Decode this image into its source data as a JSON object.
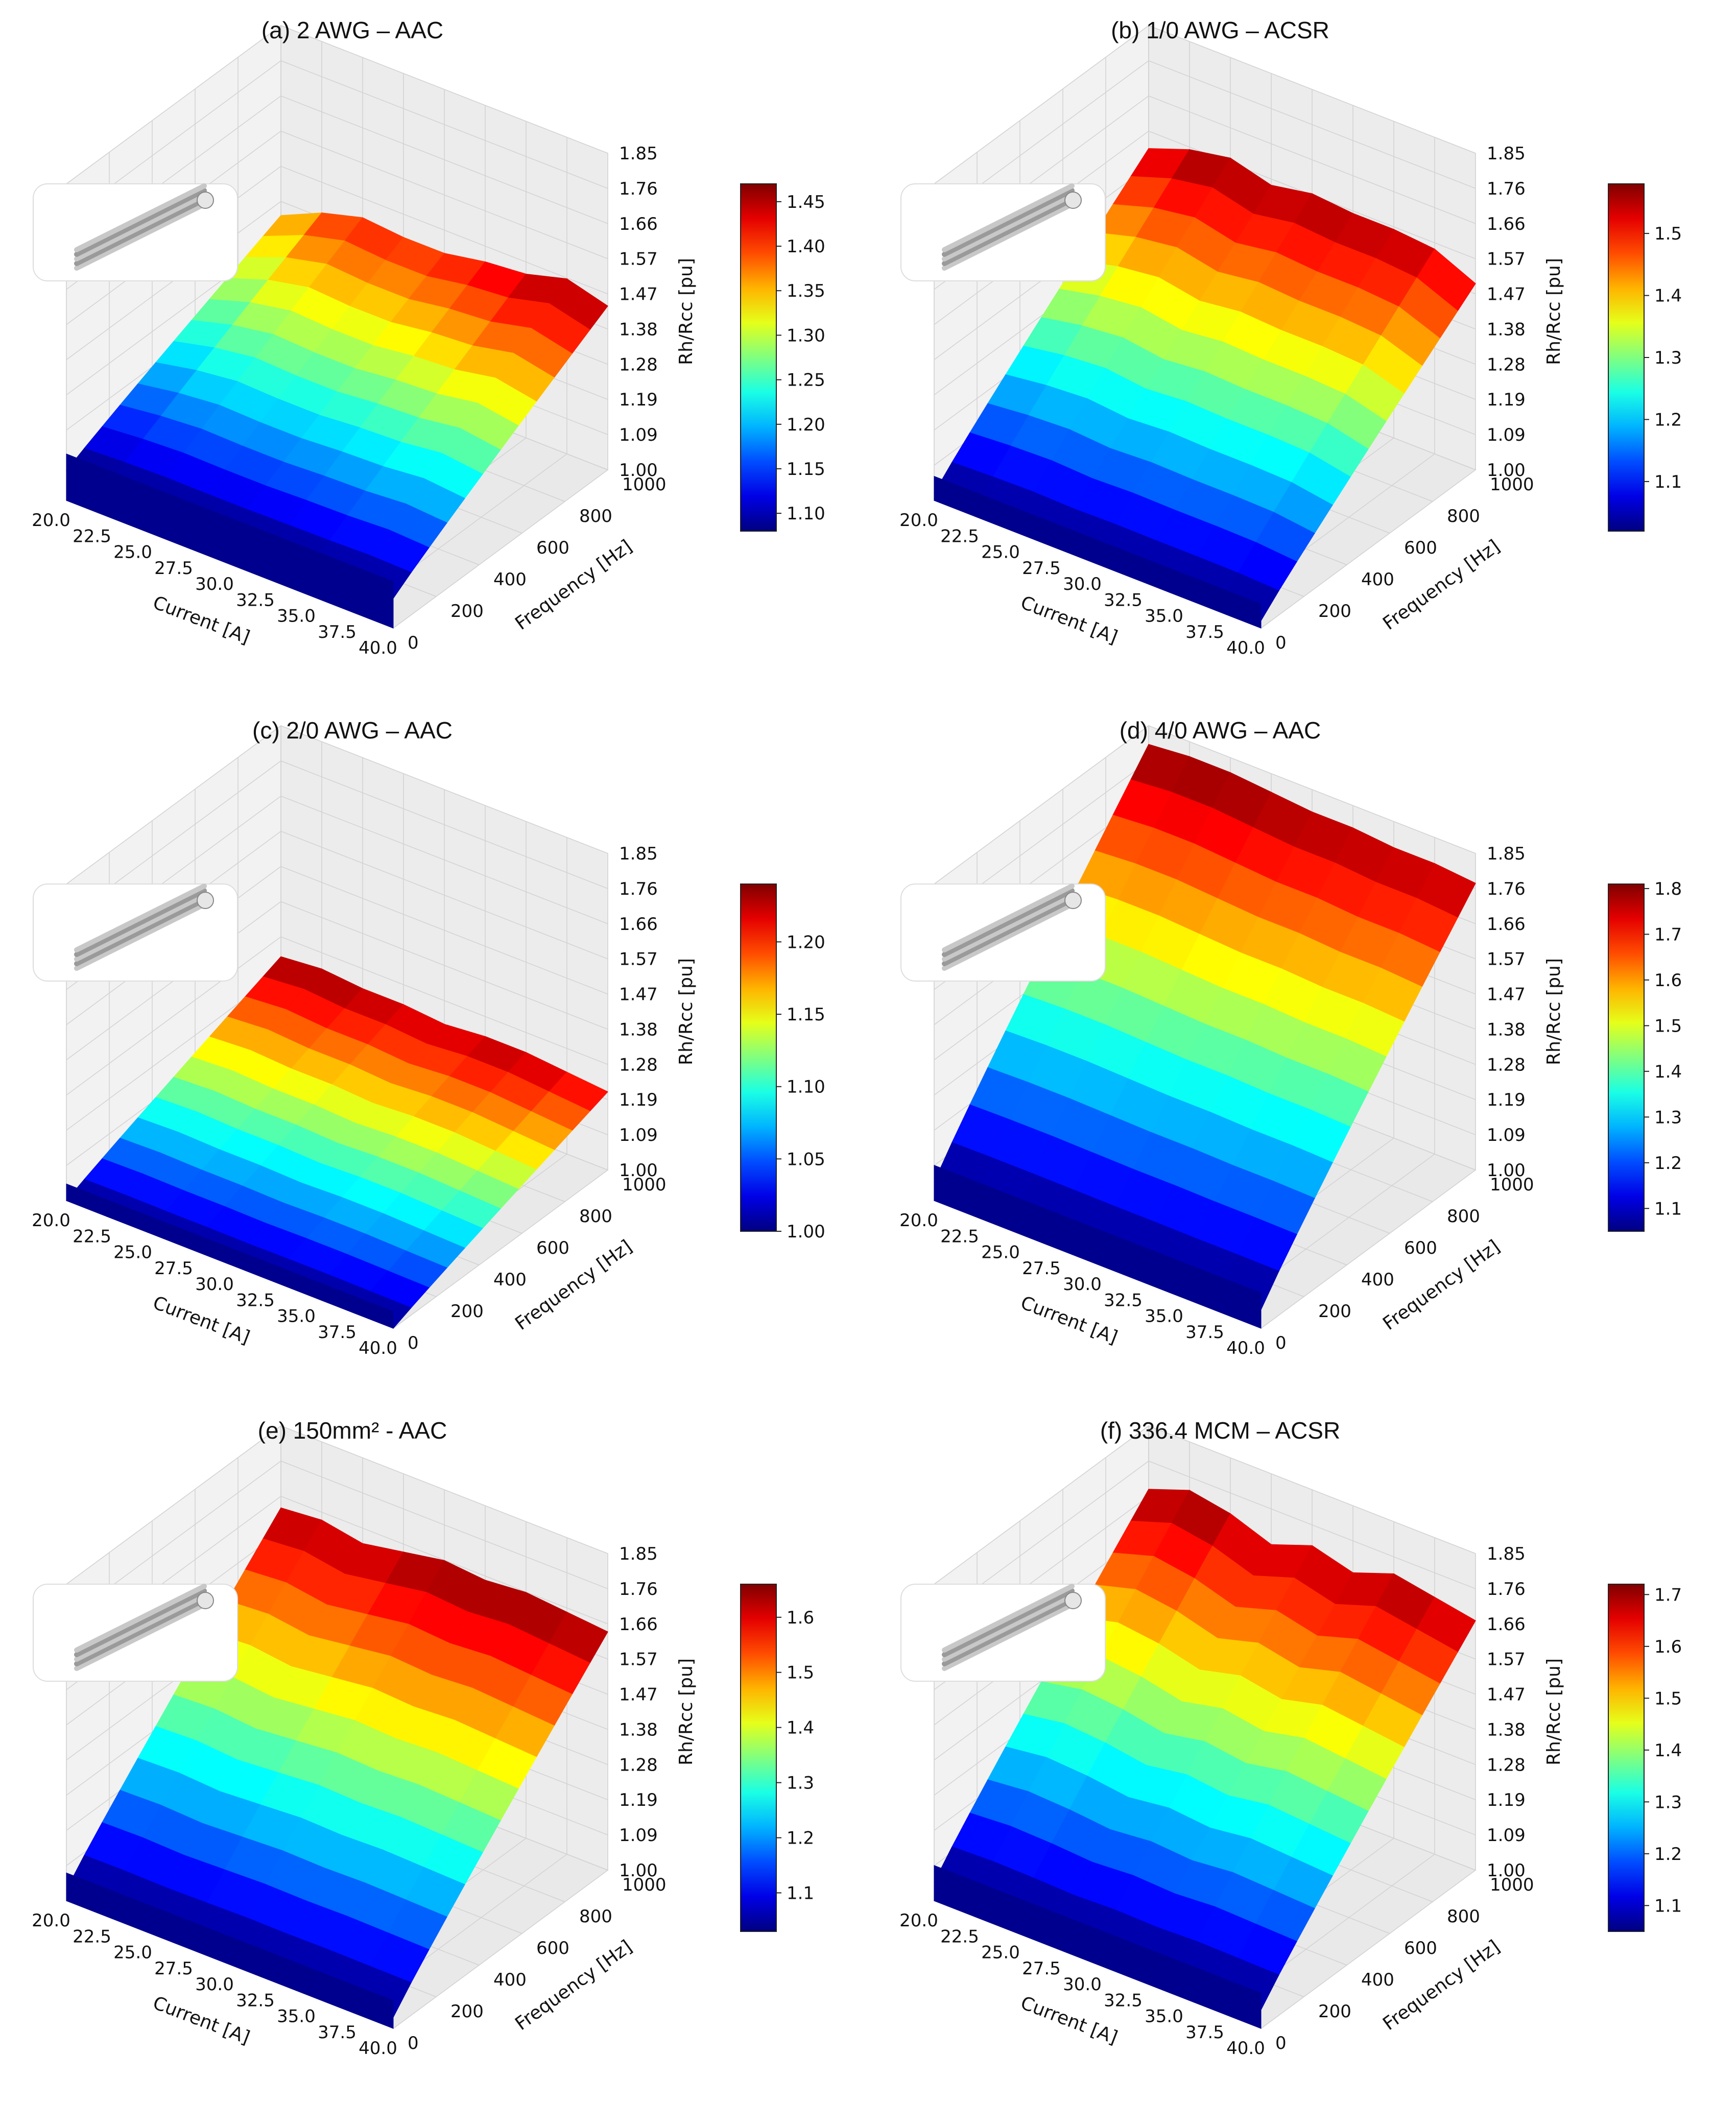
{
  "chart_data": [
    {
      "type": "surface3d",
      "title": "(a) 2 AWG – AAC",
      "xlabel": "Current [A]",
      "ylabel": "Frequency [Hz]",
      "zlabel": "Rh/Rcc [pu]",
      "x_ticks": [
        "20.0",
        "22.5",
        "25.0",
        "27.5",
        "30.0",
        "32.5",
        "35.0",
        "37.5",
        "40.0"
      ],
      "y_ticks": [
        "0",
        "200",
        "400",
        "600",
        "800",
        "1000"
      ],
      "z_ticks": [
        "1.00",
        "1.09",
        "1.19",
        "1.28",
        "1.38",
        "1.47",
        "1.57",
        "1.66",
        "1.76",
        "1.85"
      ],
      "xlim": [
        20,
        40
      ],
      "ylim": [
        0,
        1000
      ],
      "zlim": [
        1.0,
        1.85
      ],
      "colorbar": {
        "ticks": [
          "1.10",
          "1.15",
          "1.20",
          "1.25",
          "1.30",
          "1.35",
          "1.40",
          "1.45"
        ],
        "min": 1.08,
        "max": 1.47,
        "colormap": "jet"
      },
      "z_edge_f0": [
        1.08,
        1.08,
        1.08,
        1.08,
        1.08,
        1.08,
        1.08,
        1.08,
        1.08
      ],
      "z_edge_fmax": [
        1.34,
        1.39,
        1.42,
        1.41,
        1.41,
        1.43,
        1.44,
        1.47,
        1.44
      ],
      "inset_icon": "aac-7-strand-conductor-icon"
    },
    {
      "type": "surface3d",
      "title": "(b) 1/0 AWG – ACSR",
      "xlabel": "Current [A]",
      "ylabel": "Frequency [Hz]",
      "zlabel": "Rh/Rcc [pu]",
      "x_ticks": [
        "20.0",
        "22.5",
        "25.0",
        "27.5",
        "30.0",
        "32.5",
        "35.0",
        "37.5",
        "40.0"
      ],
      "y_ticks": [
        "0",
        "200",
        "400",
        "600",
        "800",
        "1000"
      ],
      "z_ticks": [
        "1.00",
        "1.09",
        "1.19",
        "1.28",
        "1.38",
        "1.47",
        "1.57",
        "1.66",
        "1.76",
        "1.85"
      ],
      "xlim": [
        20,
        40
      ],
      "ylim": [
        0,
        1000
      ],
      "zlim": [
        1.0,
        1.85
      ],
      "colorbar": {
        "ticks": [
          "1.1",
          "1.2",
          "1.3",
          "1.4",
          "1.5"
        ],
        "min": 1.02,
        "max": 1.58,
        "colormap": "jet"
      },
      "z_edge_f0": [
        1.02,
        1.02,
        1.02,
        1.02,
        1.02,
        1.02,
        1.02,
        1.02,
        1.02
      ],
      "z_edge_fmax": [
        1.52,
        1.56,
        1.58,
        1.55,
        1.57,
        1.56,
        1.56,
        1.55,
        1.5
      ],
      "inset_icon": "acsr-conductor-icon"
    },
    {
      "type": "surface3d",
      "title": "(c) 2/0 AWG – AAC",
      "xlabel": "Current [A]",
      "ylabel": "Frequency [Hz]",
      "zlabel": "Rh/Rcc [pu]",
      "x_ticks": [
        "20.0",
        "22.5",
        "25.0",
        "27.5",
        "30.0",
        "32.5",
        "35.0",
        "37.5",
        "40.0"
      ],
      "y_ticks": [
        "0",
        "200",
        "400",
        "600",
        "800",
        "1000"
      ],
      "z_ticks": [
        "1.00",
        "1.09",
        "1.19",
        "1.28",
        "1.38",
        "1.47",
        "1.57",
        "1.66",
        "1.76",
        "1.85"
      ],
      "xlim": [
        20,
        40
      ],
      "ylim": [
        0,
        1000
      ],
      "zlim": [
        1.0,
        1.85
      ],
      "colorbar": {
        "ticks": [
          "1.00",
          "1.05",
          "1.10",
          "1.15",
          "1.20"
        ],
        "min": 1.0,
        "max": 1.24,
        "colormap": "jet"
      },
      "z_edge_f0": [
        1.0,
        1.0,
        1.0,
        1.0,
        1.0,
        1.0,
        1.0,
        1.0,
        1.0
      ],
      "z_edge_fmax": [
        1.23,
        1.24,
        1.23,
        1.23,
        1.22,
        1.23,
        1.23,
        1.22,
        1.21
      ],
      "inset_icon": "aac-7-strand-conductor-icon"
    },
    {
      "type": "surface3d",
      "title": "(d) 4/0 AWG – AAC",
      "xlabel": "Current [A]",
      "ylabel": "Frequency [Hz]",
      "zlabel": "Rh/Rcc [pu]",
      "x_ticks": [
        "20.0",
        "22.5",
        "25.0",
        "27.5",
        "30.0",
        "32.5",
        "35.0",
        "37.5",
        "40.0"
      ],
      "y_ticks": [
        "0",
        "200",
        "400",
        "600",
        "800",
        "1000"
      ],
      "z_ticks": [
        "1.00",
        "1.09",
        "1.19",
        "1.28",
        "1.38",
        "1.47",
        "1.57",
        "1.66",
        "1.76",
        "1.85"
      ],
      "xlim": [
        20,
        40
      ],
      "ylim": [
        0,
        1000
      ],
      "zlim": [
        1.0,
        1.85
      ],
      "colorbar": {
        "ticks": [
          "1.1",
          "1.2",
          "1.3",
          "1.4",
          "1.5",
          "1.6",
          "1.7",
          "1.8"
        ],
        "min": 1.05,
        "max": 1.81,
        "colormap": "jet"
      },
      "z_edge_f0": [
        1.05,
        1.05,
        1.05,
        1.05,
        1.05,
        1.05,
        1.05,
        1.05,
        1.05
      ],
      "z_edge_fmax": [
        1.8,
        1.81,
        1.81,
        1.8,
        1.79,
        1.79,
        1.78,
        1.78,
        1.77
      ],
      "inset_icon": "aac-7-strand-conductor-icon"
    },
    {
      "type": "surface3d",
      "title": "(e) 150mm² - AAC",
      "xlabel": "Current [A]",
      "ylabel": "Frequency [Hz]",
      "zlabel": "Rh/Rcc [pu]",
      "x_ticks": [
        "20.0",
        "22.5",
        "25.0",
        "27.5",
        "30.0",
        "32.5",
        "35.0",
        "37.5",
        "40.0"
      ],
      "y_ticks": [
        "0",
        "200",
        "400",
        "600",
        "800",
        "1000"
      ],
      "z_ticks": [
        "1.00",
        "1.09",
        "1.19",
        "1.28",
        "1.38",
        "1.47",
        "1.57",
        "1.66",
        "1.76",
        "1.85"
      ],
      "xlim": [
        20,
        40
      ],
      "ylim": [
        0,
        1000
      ],
      "zlim": [
        1.0,
        1.85
      ],
      "colorbar": {
        "ticks": [
          "1.1",
          "1.2",
          "1.3",
          "1.4",
          "1.5",
          "1.6"
        ],
        "min": 1.03,
        "max": 1.66,
        "colormap": "jet"
      },
      "z_edge_f0": [
        1.03,
        1.03,
        1.03,
        1.03,
        1.03,
        1.03,
        1.03,
        1.03,
        1.03
      ],
      "z_edge_fmax": [
        1.63,
        1.64,
        1.62,
        1.64,
        1.66,
        1.65,
        1.66,
        1.65,
        1.64
      ],
      "inset_icon": "insulated-cable-icon"
    },
    {
      "type": "surface3d",
      "title": "(f) 336.4 MCM – ACSR",
      "xlabel": "Current [A]",
      "ylabel": "Frequency [Hz]",
      "zlabel": "Rh/Rcc [pu]",
      "x_ticks": [
        "20.0",
        "22.5",
        "25.0",
        "27.5",
        "30.0",
        "32.5",
        "35.0",
        "37.5",
        "40.0"
      ],
      "y_ticks": [
        "0",
        "200",
        "400",
        "600",
        "800",
        "1000"
      ],
      "z_ticks": [
        "1.00",
        "1.09",
        "1.19",
        "1.28",
        "1.38",
        "1.47",
        "1.57",
        "1.66",
        "1.76",
        "1.85"
      ],
      "xlim": [
        20,
        40
      ],
      "ylim": [
        0,
        1000
      ],
      "zlim": [
        1.0,
        1.85
      ],
      "colorbar": {
        "ticks": [
          "1.1",
          "1.2",
          "1.3",
          "1.4",
          "1.5",
          "1.6",
          "1.7"
        ],
        "min": 1.05,
        "max": 1.72,
        "colormap": "jet"
      },
      "z_edge_f0": [
        1.05,
        1.05,
        1.05,
        1.05,
        1.05,
        1.05,
        1.05,
        1.05,
        1.05
      ],
      "z_edge_fmax": [
        1.68,
        1.72,
        1.7,
        1.66,
        1.7,
        1.67,
        1.71,
        1.69,
        1.67
      ],
      "inset_icon": "acsr-multistrand-conductor-icon"
    }
  ]
}
